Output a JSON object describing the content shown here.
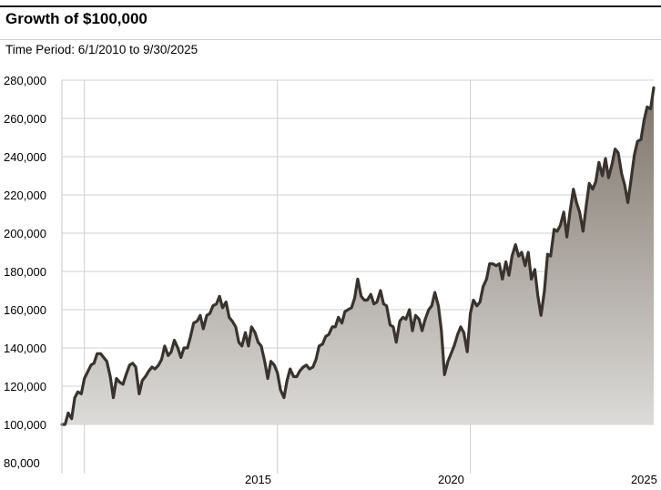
{
  "header": {
    "title": "Growth of $100,000",
    "subtitle": "Time Period: 6/1/2010 to 9/30/2025"
  },
  "colors": {
    "line": "#3a332d",
    "fill_top": "#7d7469",
    "fill_bottom": "#dcdbd9",
    "grid": "#d0d0d0"
  },
  "chart_data": {
    "type": "area",
    "title": "Growth of $100,000",
    "xlabel": "",
    "ylabel": "",
    "ylim": [
      80000,
      280000
    ],
    "xlim": [
      2010.417,
      2025.75
    ],
    "grid": true,
    "legend": "none",
    "y_ticks": [
      "280,000",
      "260,000",
      "240,000",
      "220,000",
      "200,000",
      "180,000",
      "160,000",
      "140,000",
      "120,000",
      "100,000",
      "80,000"
    ],
    "y_tick_values": [
      280000,
      260000,
      240000,
      220000,
      200000,
      180000,
      160000,
      140000,
      120000,
      100000,
      80000
    ],
    "x_ticks": [
      "2015",
      "2020",
      "2025"
    ],
    "x_gridlines": [
      2011,
      2016,
      2021
    ],
    "x_tick_label_positions": [
      2015.5,
      2020.5,
      2025.5
    ],
    "series": [
      {
        "values": [
          [
            2010.42,
            100000
          ],
          [
            2010.5,
            100000
          ],
          [
            2010.58,
            106000
          ],
          [
            2010.67,
            103000
          ],
          [
            2010.75,
            114000
          ],
          [
            2010.83,
            117000
          ],
          [
            2010.92,
            116000
          ],
          [
            2011.0,
            124000
          ],
          [
            2011.17,
            131000
          ],
          [
            2011.25,
            132000
          ],
          [
            2011.33,
            137000
          ],
          [
            2011.42,
            137000
          ],
          [
            2011.5,
            135000
          ],
          [
            2011.58,
            133000
          ],
          [
            2011.67,
            125000
          ],
          [
            2011.75,
            114000
          ],
          [
            2011.83,
            124000
          ],
          [
            2011.92,
            122000
          ],
          [
            2012.0,
            121000
          ],
          [
            2012.08,
            126000
          ],
          [
            2012.17,
            131000
          ],
          [
            2012.25,
            132000
          ],
          [
            2012.33,
            130000
          ],
          [
            2012.42,
            116000
          ],
          [
            2012.5,
            123000
          ],
          [
            2012.58,
            125000
          ],
          [
            2012.67,
            128000
          ],
          [
            2012.75,
            130000
          ],
          [
            2012.83,
            129000
          ],
          [
            2012.92,
            131000
          ],
          [
            2013.0,
            134000
          ],
          [
            2013.08,
            141000
          ],
          [
            2013.17,
            136000
          ],
          [
            2013.25,
            138000
          ],
          [
            2013.33,
            144000
          ],
          [
            2013.42,
            140000
          ],
          [
            2013.5,
            135000
          ],
          [
            2013.58,
            140000
          ],
          [
            2013.67,
            140000
          ],
          [
            2013.75,
            146000
          ],
          [
            2013.83,
            153000
          ],
          [
            2013.92,
            154000
          ],
          [
            2014.0,
            157000
          ],
          [
            2014.08,
            150000
          ],
          [
            2014.17,
            157000
          ],
          [
            2014.25,
            158000
          ],
          [
            2014.33,
            162000
          ],
          [
            2014.42,
            163000
          ],
          [
            2014.5,
            167000
          ],
          [
            2014.58,
            161000
          ],
          [
            2014.67,
            164000
          ],
          [
            2014.75,
            156000
          ],
          [
            2014.83,
            154000
          ],
          [
            2014.92,
            151000
          ],
          [
            2015.0,
            143000
          ],
          [
            2015.08,
            141000
          ],
          [
            2015.17,
            148000
          ],
          [
            2015.25,
            141000
          ],
          [
            2015.33,
            151000
          ],
          [
            2015.42,
            148000
          ],
          [
            2015.5,
            143000
          ],
          [
            2015.58,
            141000
          ],
          [
            2015.67,
            133000
          ],
          [
            2015.75,
            124000
          ],
          [
            2015.83,
            133000
          ],
          [
            2015.92,
            131000
          ],
          [
            2016.0,
            127000
          ],
          [
            2016.08,
            118000
          ],
          [
            2016.17,
            114000
          ],
          [
            2016.25,
            123000
          ],
          [
            2016.33,
            129000
          ],
          [
            2016.42,
            125000
          ],
          [
            2016.5,
            125000
          ],
          [
            2016.58,
            128000
          ],
          [
            2016.67,
            130000
          ],
          [
            2016.75,
            131000
          ],
          [
            2016.83,
            129000
          ],
          [
            2016.92,
            130000
          ],
          [
            2017.0,
            134000
          ],
          [
            2017.08,
            141000
          ],
          [
            2017.17,
            142000
          ],
          [
            2017.25,
            146000
          ],
          [
            2017.33,
            147000
          ],
          [
            2017.42,
            151000
          ],
          [
            2017.5,
            151000
          ],
          [
            2017.58,
            156000
          ],
          [
            2017.67,
            153000
          ],
          [
            2017.75,
            159000
          ],
          [
            2017.83,
            160000
          ],
          [
            2017.92,
            161000
          ],
          [
            2018.0,
            166000
          ],
          [
            2018.08,
            176000
          ],
          [
            2018.17,
            167000
          ],
          [
            2018.25,
            165000
          ],
          [
            2018.33,
            165000
          ],
          [
            2018.42,
            168000
          ],
          [
            2018.5,
            163000
          ],
          [
            2018.58,
            164000
          ],
          [
            2018.67,
            170000
          ],
          [
            2018.75,
            163000
          ],
          [
            2018.83,
            162000
          ],
          [
            2018.92,
            152000
          ],
          [
            2019.0,
            151000
          ],
          [
            2019.08,
            143000
          ],
          [
            2019.17,
            154000
          ],
          [
            2019.25,
            156000
          ],
          [
            2019.33,
            155000
          ],
          [
            2019.42,
            160000
          ],
          [
            2019.5,
            149000
          ],
          [
            2019.58,
            157000
          ],
          [
            2019.67,
            155000
          ],
          [
            2019.75,
            149000
          ],
          [
            2019.83,
            155000
          ],
          [
            2019.92,
            160000
          ],
          [
            2020.0,
            162000
          ],
          [
            2020.08,
            169000
          ],
          [
            2020.17,
            162000
          ],
          [
            2020.25,
            149000
          ],
          [
            2020.33,
            126000
          ],
          [
            2020.42,
            133000
          ],
          [
            2020.5,
            137000
          ],
          [
            2020.58,
            141000
          ],
          [
            2020.67,
            147000
          ],
          [
            2020.75,
            151000
          ],
          [
            2020.83,
            148000
          ],
          [
            2020.92,
            138000
          ],
          [
            2021.0,
            158000
          ],
          [
            2021.08,
            165000
          ],
          [
            2021.17,
            162000
          ],
          [
            2021.25,
            164000
          ],
          [
            2021.33,
            172000
          ],
          [
            2021.42,
            176000
          ],
          [
            2021.5,
            184000
          ],
          [
            2021.58,
            184000
          ],
          [
            2021.67,
            183000
          ],
          [
            2021.75,
            184000
          ],
          [
            2021.83,
            176000
          ],
          [
            2021.92,
            185000
          ],
          [
            2022.0,
            178000
          ],
          [
            2022.08,
            188000
          ],
          [
            2022.17,
            194000
          ],
          [
            2022.25,
            188000
          ],
          [
            2022.33,
            190000
          ],
          [
            2022.42,
            183000
          ],
          [
            2022.5,
            190000
          ],
          [
            2022.58,
            176000
          ],
          [
            2022.67,
            181000
          ],
          [
            2022.75,
            167000
          ],
          [
            2022.83,
            157000
          ],
          [
            2022.92,
            170000
          ],
          [
            2023.0,
            189000
          ],
          [
            2023.08,
            188000
          ],
          [
            2023.17,
            202000
          ],
          [
            2023.25,
            201000
          ],
          [
            2023.33,
            204000
          ],
          [
            2023.42,
            211000
          ],
          [
            2023.5,
            198000
          ],
          [
            2023.58,
            211000
          ],
          [
            2023.67,
            223000
          ],
          [
            2023.75,
            216000
          ],
          [
            2023.83,
            211000
          ],
          [
            2023.92,
            201000
          ],
          [
            2024.0,
            214000
          ],
          [
            2024.08,
            226000
          ],
          [
            2024.17,
            223000
          ],
          [
            2024.25,
            227000
          ],
          [
            2024.33,
            237000
          ],
          [
            2024.42,
            230000
          ],
          [
            2024.5,
            239000
          ],
          [
            2024.58,
            229000
          ],
          [
            2024.67,
            236000
          ],
          [
            2024.75,
            244000
          ],
          [
            2024.83,
            242000
          ],
          [
            2024.92,
            231000
          ],
          [
            2025.0,
            225000
          ],
          [
            2025.08,
            216000
          ],
          [
            2025.17,
            229000
          ],
          [
            2025.25,
            241000
          ],
          [
            2025.33,
            248000
          ],
          [
            2025.42,
            249000
          ],
          [
            2025.5,
            259000
          ],
          [
            2025.58,
            266000
          ],
          [
            2025.67,
            265000
          ],
          [
            2025.75,
            276000
          ]
        ]
      }
    ]
  }
}
